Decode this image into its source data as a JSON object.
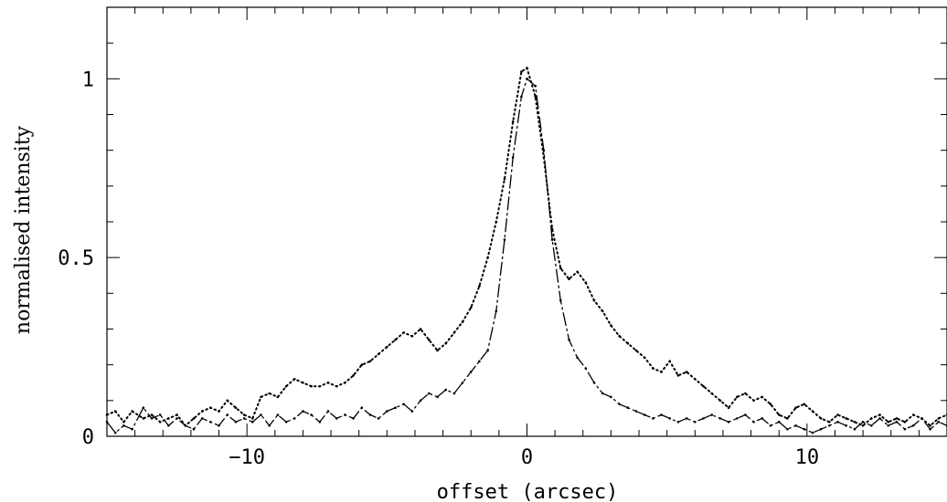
{
  "chart_data": {
    "type": "line",
    "xlabel": "offset (arcsec)",
    "ylabel": "normalised intensity",
    "xlim": [
      -15,
      15
    ],
    "ylim": [
      0,
      1.2
    ],
    "x_ticks": [
      -10,
      0,
      10
    ],
    "x_tick_labels": [
      "−10",
      "0",
      "10"
    ],
    "y_ticks": [
      0,
      0.5,
      1
    ],
    "y_tick_labels": [
      "0",
      "0.5",
      "1"
    ],
    "grid": false,
    "series": [
      {
        "style": "dash-dot",
        "x": [
          -15,
          -14.7,
          -14.4,
          -14.1,
          -13.7,
          -13.4,
          -13.1,
          -12.8,
          -12.5,
          -12.2,
          -11.9,
          -11.6,
          -11.3,
          -11,
          -10.7,
          -10.4,
          -10.1,
          -9.8,
          -9.5,
          -9.2,
          -8.9,
          -8.6,
          -8.3,
          -8,
          -7.7,
          -7.4,
          -7.1,
          -6.8,
          -6.5,
          -6.2,
          -5.9,
          -5.6,
          -5.3,
          -5,
          -4.7,
          -4.4,
          -4.1,
          -3.8,
          -3.5,
          -3.2,
          -2.9,
          -2.6,
          -2.3,
          -2,
          -1.7,
          -1.4,
          -1.1,
          -0.8,
          -0.5,
          -0.2,
          0,
          0.3,
          0.6,
          0.9,
          1.2,
          1.5,
          1.8,
          2.1,
          2.4,
          2.7,
          3,
          3.3,
          3.6,
          3.9,
          4.2,
          4.5,
          4.8,
          5.1,
          5.4,
          5.7,
          6,
          6.3,
          6.6,
          6.9,
          7.2,
          7.5,
          7.8,
          8.1,
          8.4,
          8.7,
          9,
          9.3,
          9.6,
          9.9,
          10.2,
          10.5,
          10.8,
          11.1,
          11.4,
          11.7,
          12,
          12.3,
          12.6,
          12.9,
          13.2,
          13.5,
          13.8,
          14.1,
          14.4,
          14.7,
          15
        ],
        "y": [
          0.04,
          0.01,
          0.03,
          0.02,
          0.08,
          0.05,
          0.06,
          0.03,
          0.05,
          0.03,
          0.02,
          0.05,
          0.04,
          0.03,
          0.06,
          0.04,
          0.05,
          0.04,
          0.06,
          0.03,
          0.06,
          0.04,
          0.05,
          0.07,
          0.06,
          0.04,
          0.07,
          0.05,
          0.06,
          0.05,
          0.08,
          0.06,
          0.05,
          0.07,
          0.08,
          0.09,
          0.07,
          0.1,
          0.12,
          0.11,
          0.13,
          0.12,
          0.15,
          0.18,
          0.21,
          0.24,
          0.35,
          0.55,
          0.78,
          0.95,
          1.0,
          0.98,
          0.8,
          0.55,
          0.38,
          0.27,
          0.22,
          0.19,
          0.15,
          0.12,
          0.11,
          0.09,
          0.08,
          0.07,
          0.06,
          0.05,
          0.06,
          0.05,
          0.04,
          0.05,
          0.04,
          0.05,
          0.06,
          0.05,
          0.04,
          0.05,
          0.06,
          0.04,
          0.05,
          0.03,
          0.04,
          0.02,
          0.03,
          0.02,
          0.01,
          0.02,
          0.03,
          0.04,
          0.03,
          0.02,
          0.04,
          0.03,
          0.05,
          0.03,
          0.04,
          0.02,
          0.03,
          0.05,
          0.02,
          0.04,
          0.03
        ]
      },
      {
        "style": "dotted",
        "x": [
          -15,
          -14.7,
          -14.4,
          -14.1,
          -13.7,
          -13.4,
          -13.1,
          -12.8,
          -12.5,
          -12.2,
          -11.9,
          -11.6,
          -11.3,
          -11,
          -10.7,
          -10.4,
          -10.1,
          -9.8,
          -9.5,
          -9.2,
          -8.9,
          -8.6,
          -8.3,
          -8,
          -7.7,
          -7.4,
          -7.1,
          -6.8,
          -6.5,
          -6.2,
          -5.9,
          -5.6,
          -5.3,
          -5,
          -4.7,
          -4.4,
          -4.1,
          -3.8,
          -3.5,
          -3.2,
          -2.9,
          -2.6,
          -2.3,
          -2,
          -1.7,
          -1.4,
          -1.1,
          -0.8,
          -0.5,
          -0.2,
          0,
          0.3,
          0.6,
          0.9,
          1.2,
          1.5,
          1.8,
          2.1,
          2.4,
          2.7,
          3,
          3.3,
          3.6,
          3.9,
          4.2,
          4.5,
          4.8,
          5.1,
          5.4,
          5.7,
          6,
          6.3,
          6.6,
          6.9,
          7.2,
          7.5,
          7.8,
          8.1,
          8.4,
          8.7,
          9,
          9.3,
          9.6,
          9.9,
          10.2,
          10.5,
          10.8,
          11.1,
          11.4,
          11.7,
          12,
          12.3,
          12.6,
          12.9,
          13.2,
          13.5,
          13.8,
          14.1,
          14.4,
          14.7,
          15
        ],
        "y": [
          0.06,
          0.07,
          0.04,
          0.07,
          0.05,
          0.06,
          0.04,
          0.05,
          0.06,
          0.03,
          0.05,
          0.07,
          0.08,
          0.07,
          0.1,
          0.08,
          0.06,
          0.05,
          0.11,
          0.12,
          0.11,
          0.14,
          0.16,
          0.15,
          0.14,
          0.14,
          0.15,
          0.14,
          0.15,
          0.17,
          0.2,
          0.21,
          0.23,
          0.25,
          0.27,
          0.29,
          0.28,
          0.3,
          0.27,
          0.24,
          0.26,
          0.29,
          0.32,
          0.36,
          0.42,
          0.5,
          0.6,
          0.72,
          0.88,
          1.02,
          1.03,
          0.95,
          0.78,
          0.58,
          0.47,
          0.44,
          0.46,
          0.43,
          0.38,
          0.35,
          0.31,
          0.28,
          0.26,
          0.24,
          0.22,
          0.19,
          0.18,
          0.21,
          0.17,
          0.18,
          0.16,
          0.14,
          0.12,
          0.1,
          0.08,
          0.11,
          0.12,
          0.1,
          0.11,
          0.09,
          0.06,
          0.05,
          0.08,
          0.09,
          0.07,
          0.05,
          0.04,
          0.06,
          0.05,
          0.04,
          0.03,
          0.05,
          0.06,
          0.04,
          0.05,
          0.04,
          0.06,
          0.05,
          0.03,
          0.05,
          0.06
        ]
      }
    ]
  }
}
